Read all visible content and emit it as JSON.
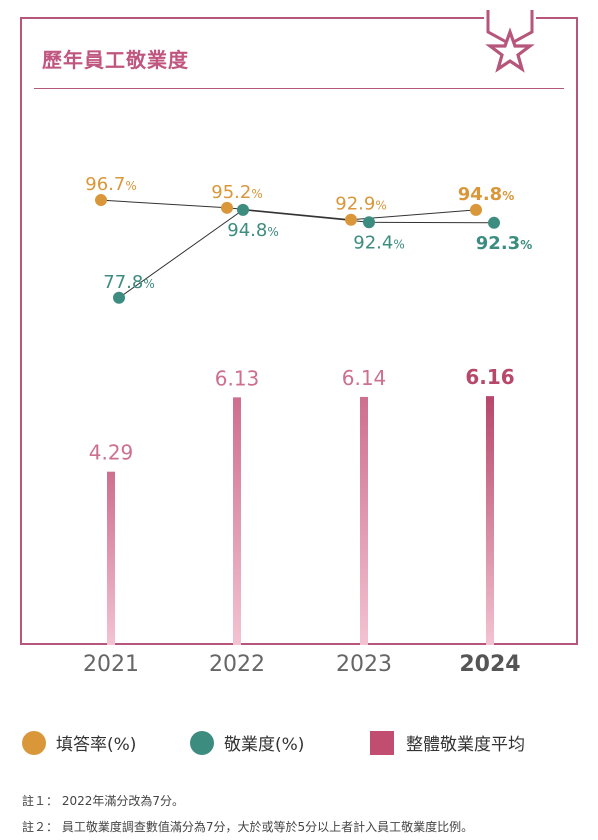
{
  "title": "歷年員工敬業度",
  "colors": {
    "frame": "#b5567a",
    "orange": "#d9973a",
    "teal": "#3d8c80",
    "bar": "#cd6f8e",
    "bar_highlight": "#b7476b"
  },
  "chart_data": {
    "type": "bar+line",
    "categories": [
      "2021",
      "2022",
      "2023",
      "2024"
    ],
    "highlight_index": 3,
    "series": [
      {
        "name": "填答率(%)",
        "kind": "line",
        "values": [
          96.7,
          95.2,
          92.9,
          94.8
        ],
        "labels": [
          "96.7",
          "95.2",
          "92.9",
          "94.8"
        ]
      },
      {
        "name": "敬業度(%)",
        "kind": "line",
        "values": [
          77.8,
          94.8,
          92.4,
          92.3
        ],
        "labels": [
          "77.8",
          "94.8",
          "92.4",
          "92.3"
        ]
      },
      {
        "name": "整體敬業度平均",
        "kind": "bar",
        "values": [
          4.29,
          6.13,
          6.14,
          6.16
        ],
        "labels": [
          "4.29",
          "6.13",
          "6.14",
          "6.16"
        ]
      }
    ],
    "pct_suffix": "%"
  },
  "legend": [
    "填答率(%)",
    "敬業度(%)",
    "整體敬業度平均"
  ],
  "notes": [
    "註１：  2022年滿分改為7分。",
    "註２：  員工敬業度調查數值滿分為7分，大於或等於5分以上者計入員工敬業度比例。"
  ]
}
